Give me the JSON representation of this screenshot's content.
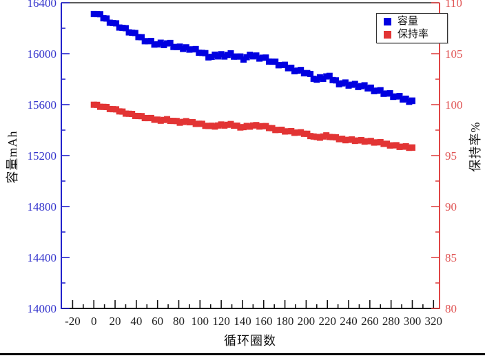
{
  "page": {
    "background": "#ffffff",
    "divider_color": "#000000"
  },
  "chart_data": {
    "type": "scatter",
    "title": "",
    "xlabel": "循环圈数",
    "ylabel_left": "容量mAh",
    "ylabel_right": "保持率%",
    "xlim": [
      -30,
      325
    ],
    "ylim_left": [
      14000,
      16400
    ],
    "ylim_right": [
      80,
      110
    ],
    "x_ticks": [
      -20,
      0,
      20,
      40,
      60,
      80,
      100,
      120,
      140,
      160,
      180,
      200,
      220,
      240,
      260,
      280,
      300,
      320
    ],
    "x_minor_step": 10,
    "y_ticks_left": [
      14000,
      14400,
      14800,
      15200,
      15600,
      16000,
      16400
    ],
    "left_minor_step": 200,
    "y_ticks_right": [
      80,
      85,
      90,
      95,
      100,
      105,
      110
    ],
    "right_minor_step": 2.5,
    "grid": false,
    "legend_position": "top-right",
    "legend": [
      {
        "label": "容量",
        "color": "#0000e0"
      },
      {
        "label": "保持率",
        "color": "#e23434"
      }
    ],
    "axis_colors": {
      "left_spine": "#2222cc",
      "left_text": "#3333cc",
      "right_spine": "#e04545",
      "right_text": "#e05555",
      "bottom_spine": "#111111",
      "top_spine": "#222222",
      "x_text": "#222222"
    },
    "series": [
      {
        "name": "容量",
        "axis": "left",
        "marker": "square",
        "color": "#0000e0",
        "x": [
          0,
          10,
          20,
          30,
          40,
          50,
          60,
          70,
          80,
          90,
          100,
          110,
          120,
          130,
          140,
          150,
          160,
          170,
          180,
          190,
          200,
          210,
          220,
          230,
          240,
          250,
          260,
          270,
          280,
          290,
          300
        ],
        "y": [
          16320,
          16280,
          16235,
          16190,
          16145,
          16105,
          16075,
          16080,
          16040,
          16045,
          16015,
          15970,
          15990,
          15995,
          15960,
          15985,
          15970,
          15930,
          15900,
          15875,
          15855,
          15795,
          15820,
          15775,
          15760,
          15745,
          15730,
          15705,
          15675,
          15648,
          15632
        ]
      },
      {
        "name": "保持率",
        "axis": "right",
        "marker": "square",
        "color": "#e23434",
        "x": [
          0,
          10,
          20,
          30,
          40,
          50,
          60,
          70,
          80,
          90,
          100,
          110,
          120,
          130,
          140,
          150,
          160,
          170,
          180,
          190,
          200,
          210,
          220,
          230,
          240,
          250,
          260,
          270,
          280,
          290,
          300
        ],
        "y": [
          100.0,
          99.75,
          99.48,
          99.2,
          98.93,
          98.68,
          98.5,
          98.53,
          98.28,
          98.31,
          98.13,
          97.86,
          97.98,
          98.01,
          97.79,
          97.95,
          97.86,
          97.61,
          97.43,
          97.27,
          97.15,
          96.78,
          96.94,
          96.66,
          96.57,
          96.48,
          96.38,
          96.23,
          96.05,
          95.88,
          95.78
        ]
      }
    ],
    "render": {
      "interp_step": 3,
      "jitter_left": 15,
      "jitter_right": 0.09,
      "marker_size": 9
    }
  }
}
